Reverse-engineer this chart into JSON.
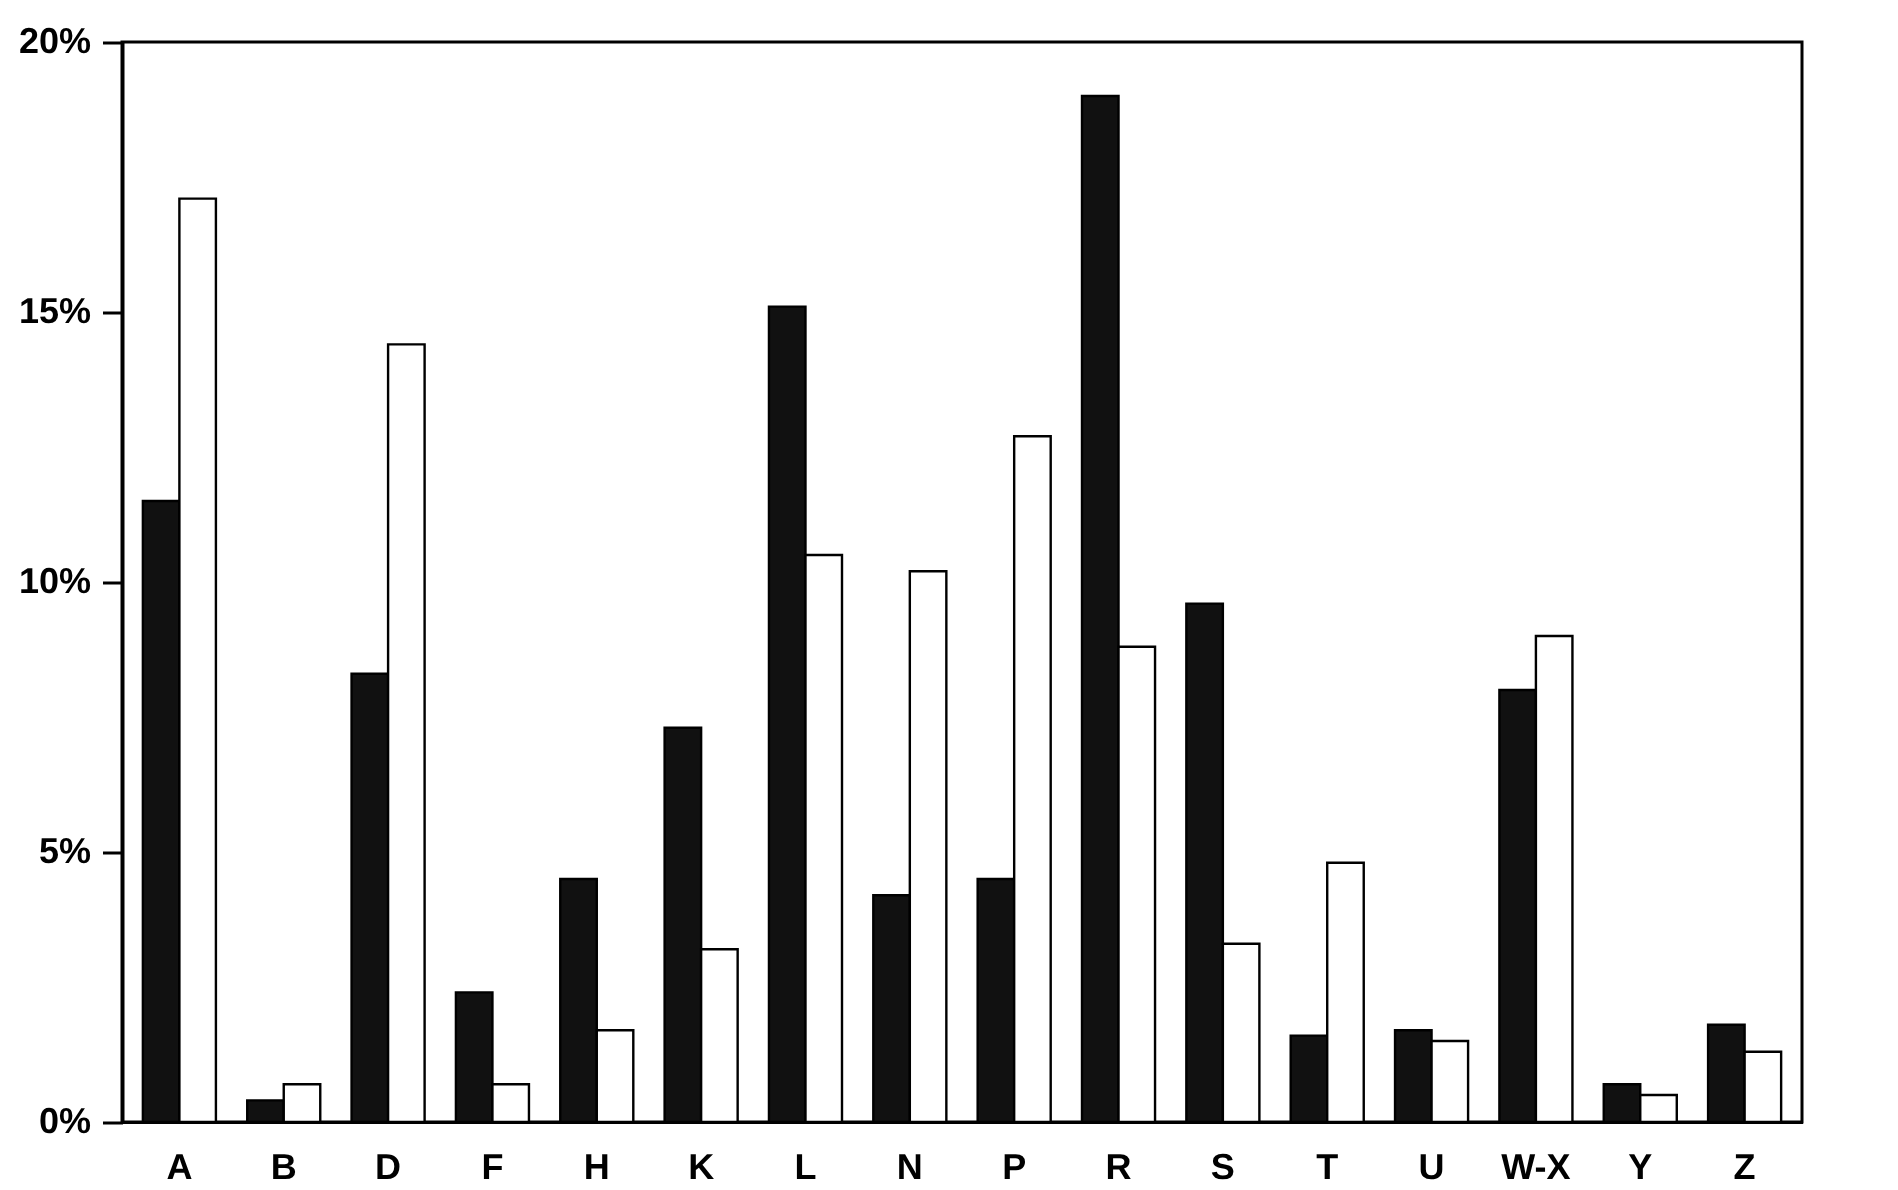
{
  "chart_data": {
    "type": "bar",
    "categories": [
      "A",
      "B",
      "D",
      "F",
      "H",
      "K",
      "L",
      "N",
      "P",
      "R",
      "S",
      "T",
      "U",
      "W-X",
      "Y",
      "Z"
    ],
    "series": [
      {
        "color": "#111111",
        "values": [
          11.5,
          0.4,
          8.3,
          2.4,
          4.5,
          7.3,
          15.1,
          4.2,
          4.5,
          19.0,
          9.6,
          1.6,
          1.7,
          8.0,
          0.7,
          1.8
        ]
      },
      {
        "color": "#ffffff",
        "values": [
          17.1,
          0.7,
          14.4,
          0.7,
          1.7,
          3.2,
          10.5,
          10.2,
          12.7,
          8.8,
          3.3,
          4.8,
          1.5,
          9.0,
          0.5,
          1.3
        ]
      }
    ],
    "ylim": [
      0,
      20
    ],
    "yticks": [
      {
        "value": 0,
        "label": "0%"
      },
      {
        "value": 5,
        "label": "5%"
      },
      {
        "value": 10,
        "label": "10%"
      },
      {
        "value": 15,
        "label": "15%"
      },
      {
        "value": 20,
        "label": "20%"
      }
    ],
    "grid": false,
    "legend": false
  }
}
